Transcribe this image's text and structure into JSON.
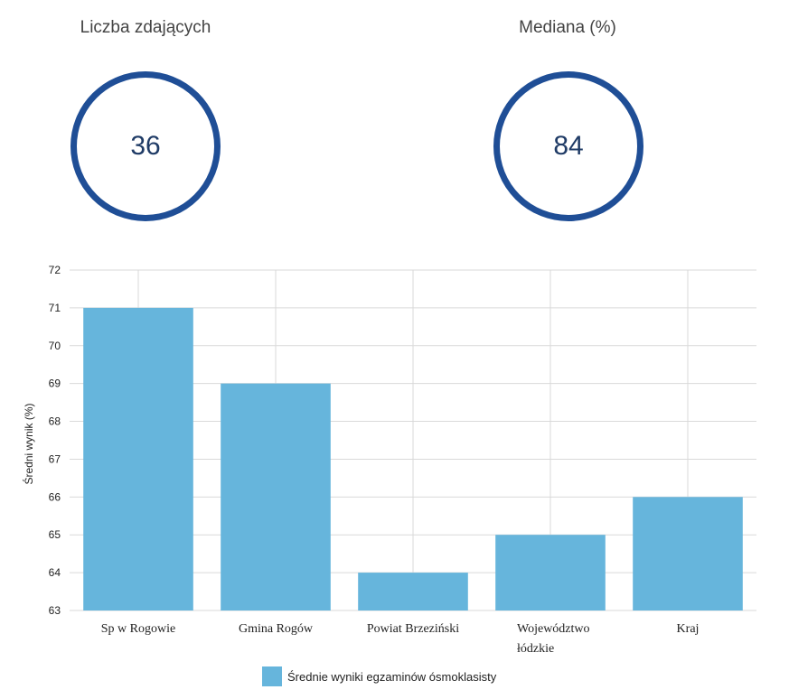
{
  "stats": {
    "count_title": "Liczba zdających",
    "count_value": "36",
    "median_title": "Mediana (%)",
    "median_value": "84"
  },
  "colors": {
    "ring": "#1f4e96",
    "bar": "#66b5dc",
    "grid": "#d9d9d9"
  },
  "chart_data": {
    "type": "bar",
    "title": "",
    "xlabel": "",
    "ylabel": "Średni wynik (%)",
    "ylim": [
      63,
      72
    ],
    "yticks": [
      63,
      64,
      65,
      66,
      67,
      68,
      69,
      70,
      71,
      72
    ],
    "categories": [
      "Sp w Rogowie",
      "Gmina Rogów",
      "Powiat Brzeziński",
      "Województwo łódzkie",
      "Kraj"
    ],
    "category_lines": [
      [
        "Sp w Rogowie"
      ],
      [
        "Gmina Rogów"
      ],
      [
        "Powiat Brzeziński"
      ],
      [
        "Województwo",
        "łódzkie"
      ],
      [
        "Kraj"
      ]
    ],
    "series": [
      {
        "name": "Średnie wyniki egzaminów ósmoklasisty",
        "values": [
          71,
          69,
          64,
          65,
          66
        ]
      }
    ],
    "grid": true,
    "legend": "bottom"
  }
}
